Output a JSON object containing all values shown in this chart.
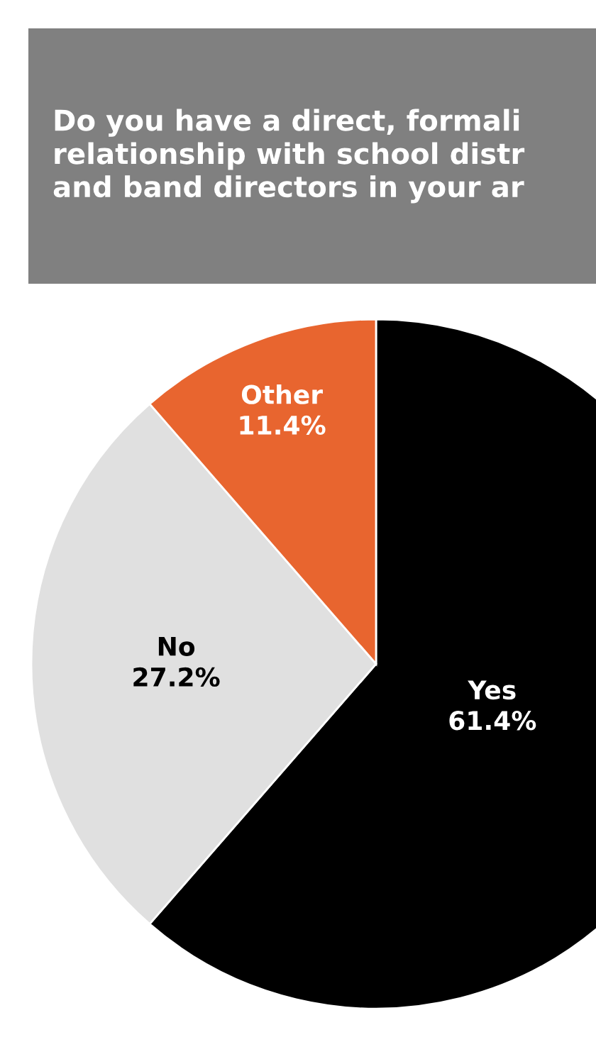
{
  "chart_data": {
    "type": "pie",
    "title": "Do you have a direct, formali\nrelationship with school distr\nand band directors in your ar",
    "categories": [
      "Yes",
      "No",
      "Other"
    ],
    "values": [
      61.4,
      27.2,
      11.4
    ],
    "colors": [
      "#000000",
      "#e0e0e0",
      "#e8652f"
    ],
    "value_labels": [
      "61.4%",
      "27.2%",
      "11.4%"
    ]
  }
}
